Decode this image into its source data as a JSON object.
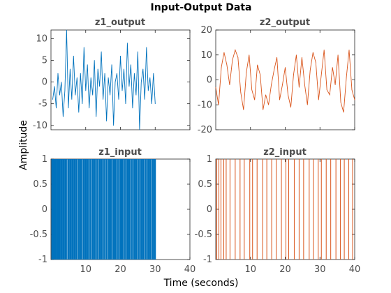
{
  "figure": {
    "title": "Input-Output Data",
    "xlabel": "Time (seconds)",
    "ylabel": "Amplitude"
  },
  "chart_data": [
    {
      "type": "line",
      "title": "z1_output",
      "xlim": [
        0,
        40
      ],
      "ylim": [
        -11,
        12
      ],
      "yticks": [
        -10,
        -5,
        0,
        5,
        10
      ],
      "color": "#0072BD",
      "x": [
        0.5,
        1.0,
        1.5,
        2.0,
        2.5,
        3.0,
        3.5,
        4.0,
        4.5,
        5.0,
        5.5,
        6.0,
        6.5,
        7.0,
        7.5,
        8.0,
        8.5,
        9.0,
        9.5,
        10.0,
        10.5,
        11.0,
        11.5,
        12.0,
        12.5,
        13.0,
        13.5,
        14.0,
        14.5,
        15.0,
        15.5,
        16.0,
        16.5,
        17.0,
        17.5,
        18.0,
        18.5,
        19.0,
        19.5,
        20.0,
        20.5,
        21.0,
        21.5,
        22.0,
        22.5,
        23.0,
        23.5,
        24.0,
        24.5,
        25.0,
        25.5,
        26.0,
        26.5,
        27.0,
        27.5,
        28.0,
        28.5,
        29.0,
        29.5,
        30.0
      ],
      "y": [
        -4,
        -1,
        -6,
        2,
        -3,
        0,
        -8,
        -2,
        12,
        -6,
        3,
        -4,
        6,
        -3,
        1,
        -7,
        2,
        -5,
        8,
        -2,
        4,
        -6,
        1,
        -3,
        5,
        -8,
        3,
        -1,
        7,
        -4,
        2,
        -9,
        1,
        -3,
        4,
        -10,
        0,
        2,
        -4,
        6,
        -2,
        3,
        -5,
        9,
        -1,
        4,
        -6,
        2,
        -3,
        7,
        -11,
        0,
        3,
        -4,
        8,
        -2,
        1,
        -5,
        2,
        -5
      ]
    },
    {
      "type": "line",
      "title": "z2_output",
      "xlim": [
        0,
        40
      ],
      "ylim": [
        -20,
        20
      ],
      "yticks": [
        -20,
        -10,
        0,
        10,
        20
      ],
      "color": "#D95319",
      "x": [
        0.0,
        0.8,
        1.6,
        2.4,
        3.2,
        4.0,
        4.8,
        5.6,
        6.4,
        7.2,
        8.0,
        8.8,
        9.6,
        10.4,
        11.2,
        12.0,
        12.8,
        13.6,
        14.4,
        15.2,
        16.0,
        16.8,
        17.6,
        18.4,
        19.2,
        20.0,
        20.8,
        21.6,
        22.4,
        23.2,
        24.0,
        24.8,
        25.6,
        26.4,
        27.2,
        28.0,
        28.8,
        29.6,
        30.4,
        31.2,
        32.0,
        32.8,
        33.6,
        34.4,
        35.2,
        36.0,
        36.8,
        37.6,
        38.4,
        39.2,
        40.0
      ],
      "y": [
        -3,
        -10,
        5,
        11,
        6,
        -2,
        8,
        12,
        9,
        -5,
        -12,
        3,
        10,
        -4,
        -8,
        6,
        2,
        -12,
        -6,
        -10,
        -2,
        4,
        9,
        -8,
        -2,
        5,
        -6,
        -11,
        2,
        10,
        -3,
        9,
        -2,
        -10,
        4,
        11,
        7,
        -8,
        2,
        12,
        -4,
        -6,
        5,
        -2,
        10,
        -9,
        -13,
        1,
        12,
        -4,
        -8
      ]
    },
    {
      "type": "bar",
      "title": "z1_input",
      "xlim": [
        0,
        40
      ],
      "ylim": [
        -1,
        1
      ],
      "yticks": [
        -1,
        -0.5,
        0,
        0.5,
        1
      ],
      "color": "#0072BD",
      "x": [
        0.4,
        0.9,
        1.4,
        2.0,
        2.5,
        3.1,
        3.7,
        4.3,
        5.0,
        5.6,
        6.2,
        6.8,
        7.4,
        8.1,
        8.7,
        9.4,
        10.0,
        10.6,
        11.3,
        12.0,
        12.6,
        13.3,
        14.0,
        14.6,
        15.3,
        16.0,
        16.7,
        17.3,
        18.0,
        18.6,
        19.3,
        20.0,
        20.6,
        21.3,
        22.0,
        22.6,
        23.3,
        24.0,
        24.6,
        25.3,
        26.0,
        26.6,
        27.3,
        28.0,
        28.6,
        29.3,
        29.9
      ],
      "values": [
        1,
        1,
        1,
        1,
        1,
        1,
        1,
        1,
        1,
        1,
        1,
        1,
        1,
        1,
        1,
        1,
        1,
        1,
        1,
        1,
        1,
        1,
        1,
        1,
        1,
        1,
        1,
        1,
        1,
        1,
        1,
        1,
        1,
        1,
        1,
        1,
        1,
        1,
        1,
        1,
        1,
        1,
        1,
        1,
        1,
        1,
        1
      ]
    },
    {
      "type": "bar",
      "title": "z2_input",
      "xlim": [
        0,
        40
      ],
      "ylim": [
        -1,
        1
      ],
      "yticks": [
        -1,
        -0.5,
        0,
        0.5,
        1
      ],
      "color": "#D95319",
      "x": [
        0.3,
        0.9,
        1.5,
        2.3,
        3.0,
        4.1,
        5.6,
        7.0,
        8.2,
        9.8,
        10.6,
        11.9,
        13.5,
        14.7,
        16.1,
        17.4,
        18.9,
        20.2,
        21.0,
        22.6,
        24.0,
        25.3,
        26.9,
        28.1,
        29.5,
        30.4,
        31.8,
        33.1,
        34.6,
        35.9,
        37.0,
        38.3,
        39.4
      ],
      "values": [
        1,
        1,
        1,
        1,
        1,
        1,
        1,
        1,
        1,
        1,
        1,
        1,
        1,
        1,
        1,
        1,
        1,
        1,
        1,
        1,
        1,
        1,
        1,
        1,
        1,
        1,
        1,
        1,
        1,
        1,
        1,
        1,
        1
      ]
    }
  ]
}
